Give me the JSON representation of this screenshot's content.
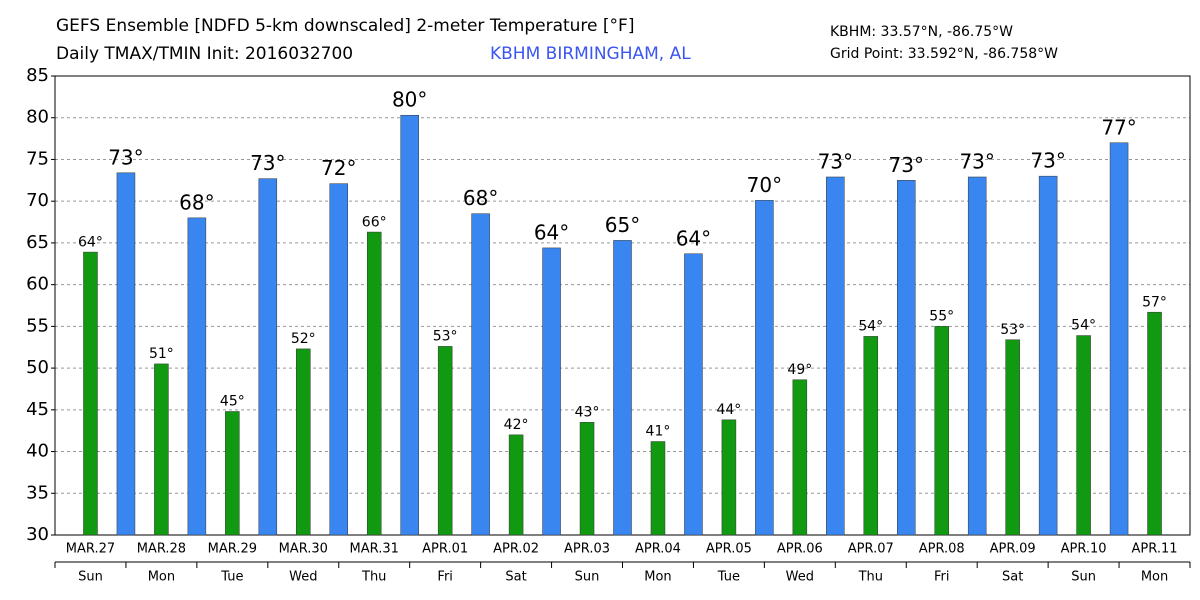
{
  "chart_data": {
    "type": "bar",
    "title": "GEFS Ensemble [NDFD 5-km downscaled] 2-meter Temperature [°F]",
    "subtitle": "Daily TMAX/TMIN Init: 2016032700",
    "location": "KBHM BIRMINGHAM, AL",
    "station": "KBHM: 33.57°N, -86.75°W",
    "grid_point": "Grid Point: 33.592°N, -86.758°W",
    "categories": [
      "MAR.27",
      "MAR.28",
      "MAR.29",
      "MAR.30",
      "MAR.31",
      "APR.01",
      "APR.02",
      "APR.03",
      "APR.04",
      "APR.05",
      "APR.06",
      "APR.07",
      "APR.08",
      "APR.09",
      "APR.10",
      "APR.11"
    ],
    "weekdays": [
      "Sun",
      "Mon",
      "Tue",
      "Wed",
      "Thu",
      "Fri",
      "Sat",
      "Sun",
      "Mon",
      "Tue",
      "Wed",
      "Thu",
      "Fri",
      "Sat",
      "Sun",
      "Mon"
    ],
    "series": [
      {
        "color": "#129912",
        "values": [
          63.9,
          50.5,
          44.8,
          52.3,
          66.3,
          52.6,
          42.0,
          43.5,
          41.2,
          43.8,
          48.6,
          53.8,
          55.0,
          53.4,
          53.9,
          56.7
        ],
        "value_labels": [
          "64°",
          "51°",
          "45°",
          "52°",
          "66°",
          "53°",
          "42°",
          "43°",
          "41°",
          "44°",
          "49°",
          "54°",
          "55°",
          "53°",
          "54°",
          "57°"
        ]
      },
      {
        "color": "#3a86f0",
        "values": [
          73.4,
          68.0,
          72.7,
          72.1,
          80.3,
          68.5,
          64.4,
          65.3,
          63.7,
          70.1,
          72.9,
          72.5,
          72.9,
          73.0,
          77.0,
          null
        ],
        "value_labels": [
          "73°",
          "68°",
          "73°",
          "72°",
          "80°",
          "68°",
          "64°",
          "65°",
          "64°",
          "70°",
          "73°",
          "73°",
          "73°",
          "73°",
          "77°",
          null
        ]
      }
    ],
    "ylim": [
      30,
      85
    ],
    "yticks": [
      30,
      35,
      40,
      45,
      50,
      55,
      60,
      65,
      70,
      75,
      80,
      85
    ],
    "grid": true
  }
}
